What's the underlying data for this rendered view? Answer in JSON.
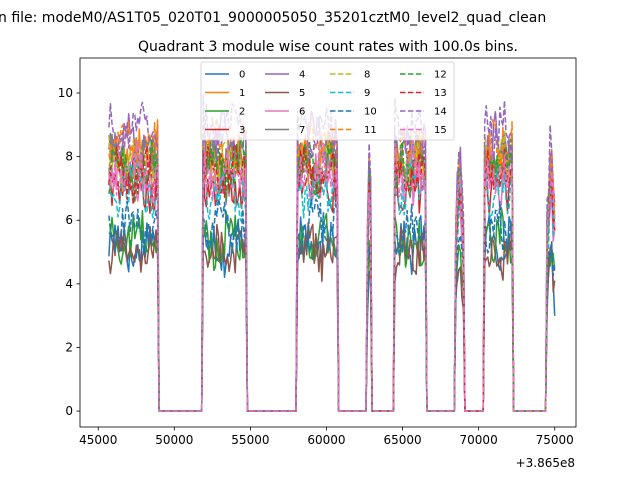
{
  "suptitle": "n file: modeM0/AS1T05_020T01_9000005050_35201cztM0_level2_quad_clean",
  "chart_data": {
    "type": "line",
    "title": "Quadrant 3 module wise count rates with 100.0s bins.",
    "xlabel": "",
    "ylabel": "",
    "x_offset_label": "+3.865e8",
    "xlim": [
      43800,
      76400
    ],
    "ylim": [
      -0.5,
      11.1
    ],
    "xticks": [
      45000,
      50000,
      55000,
      60000,
      65000,
      70000,
      75000
    ],
    "xtick_labels": [
      "45000",
      "50000",
      "55000",
      "60000",
      "65000",
      "70000",
      "75000"
    ],
    "yticks": [
      0,
      2,
      4,
      6,
      8,
      10
    ],
    "ytick_labels": [
      "0",
      "2",
      "4",
      "6",
      "8",
      "10"
    ],
    "legend_position": "upper center",
    "segments": [
      {
        "start": 45700,
        "end": 48900
      },
      {
        "start": 51900,
        "end": 54700
      },
      {
        "start": 58100,
        "end": 60700
      },
      {
        "start": 62700,
        "end": 62950
      },
      {
        "start": 64500,
        "end": 66500
      },
      {
        "start": 68500,
        "end": 69000
      },
      {
        "start": 70400,
        "end": 72200
      },
      {
        "start": 74500,
        "end": 75000
      }
    ],
    "series": [
      {
        "name": "0",
        "color": "#1f77b4",
        "dash": "solid",
        "level": 5.2
      },
      {
        "name": "1",
        "color": "#ff7f0e",
        "dash": "solid",
        "level": 8.0
      },
      {
        "name": "2",
        "color": "#2ca02c",
        "dash": "solid",
        "level": 5.4
      },
      {
        "name": "3",
        "color": "#d62728",
        "dash": "solid",
        "level": 7.2
      },
      {
        "name": "4",
        "color": "#9467bd",
        "dash": "solid",
        "level": 8.5
      },
      {
        "name": "5",
        "color": "#8c564b",
        "dash": "solid",
        "level": 5.0
      },
      {
        "name": "6",
        "color": "#e377c2",
        "dash": "solid",
        "level": 7.3
      },
      {
        "name": "7",
        "color": "#7f7f7f",
        "dash": "solid",
        "level": 7.8
      },
      {
        "name": "8",
        "color": "#bcbd22",
        "dash": "dashed",
        "level": 7.9
      },
      {
        "name": "9",
        "color": "#17becf",
        "dash": "dashed",
        "level": 7.0
      },
      {
        "name": "10",
        "color": "#1f77b4",
        "dash": "dashed",
        "level": 5.8
      },
      {
        "name": "11",
        "color": "#ff7f0e",
        "dash": "dashed",
        "level": 8.2
      },
      {
        "name": "12",
        "color": "#2ca02c",
        "dash": "dashed",
        "level": 7.6
      },
      {
        "name": "13",
        "color": "#d62728",
        "dash": "dashed",
        "level": 7.4
      },
      {
        "name": "14",
        "color": "#9467bd",
        "dash": "dashed",
        "level": 8.9
      },
      {
        "name": "15",
        "color": "#e377c2",
        "dash": "dashed",
        "level": 7.5
      }
    ]
  }
}
